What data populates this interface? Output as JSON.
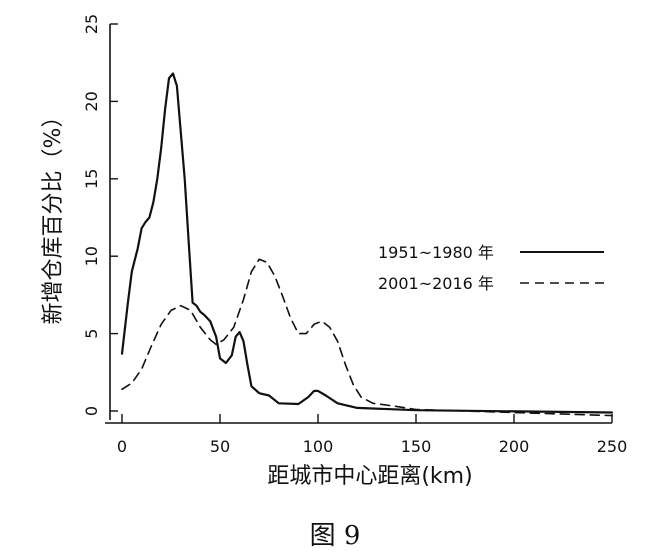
{
  "chart_data": {
    "type": "line",
    "title": "",
    "xlabel": "距城市中心距离(km)",
    "ylabel": "新增仓库百分比（%）",
    "xlim": [
      0,
      250
    ],
    "ylim": [
      0,
      25
    ],
    "x_ticks": [
      0,
      50,
      100,
      150,
      200,
      250
    ],
    "y_ticks": [
      0,
      5,
      10,
      15,
      20,
      25
    ],
    "grid": false,
    "legend_position": "right",
    "series": [
      {
        "name": "1951~1980 年",
        "style": "solid",
        "points": [
          [
            0,
            3.7
          ],
          [
            3,
            7
          ],
          [
            5,
            9
          ],
          [
            8,
            10.5
          ],
          [
            10,
            11.8
          ],
          [
            12,
            12.2
          ],
          [
            14,
            12.5
          ],
          [
            16,
            13.5
          ],
          [
            18,
            15
          ],
          [
            20,
            17
          ],
          [
            22,
            19.5
          ],
          [
            24,
            21.5
          ],
          [
            26,
            21.8
          ],
          [
            28,
            21
          ],
          [
            30,
            18
          ],
          [
            32,
            15
          ],
          [
            34,
            11
          ],
          [
            36,
            7
          ],
          [
            38,
            6.8
          ],
          [
            40,
            6.4
          ],
          [
            42,
            6.2
          ],
          [
            45,
            5.8
          ],
          [
            48,
            4.8
          ],
          [
            50,
            3.4
          ],
          [
            53,
            3.1
          ],
          [
            56,
            3.6
          ],
          [
            58,
            4.8
          ],
          [
            60,
            5.1
          ],
          [
            62,
            4.5
          ],
          [
            64,
            3.0
          ],
          [
            66,
            1.6
          ],
          [
            70,
            1.15
          ],
          [
            75,
            1.0
          ],
          [
            80,
            0.5
          ],
          [
            90,
            0.45
          ],
          [
            95,
            0.9
          ],
          [
            98,
            1.3
          ],
          [
            100,
            1.3
          ],
          [
            104,
            1.0
          ],
          [
            110,
            0.5
          ],
          [
            120,
            0.2
          ],
          [
            150,
            0.05
          ],
          [
            250,
            -0.1
          ]
        ]
      },
      {
        "name": "2001~2016 年",
        "style": "dashed",
        "points": [
          [
            0,
            1.4
          ],
          [
            5,
            1.8
          ],
          [
            10,
            2.7
          ],
          [
            15,
            4.2
          ],
          [
            20,
            5.6
          ],
          [
            25,
            6.5
          ],
          [
            30,
            6.8
          ],
          [
            35,
            6.5
          ],
          [
            40,
            5.4
          ],
          [
            45,
            4.6
          ],
          [
            48,
            4.3
          ],
          [
            52,
            4.6
          ],
          [
            57,
            5.4
          ],
          [
            62,
            7.2
          ],
          [
            66,
            9.0
          ],
          [
            70,
            9.8
          ],
          [
            74,
            9.6
          ],
          [
            78,
            8.7
          ],
          [
            82,
            7.4
          ],
          [
            86,
            6.0
          ],
          [
            90,
            5.0
          ],
          [
            94,
            5.0
          ],
          [
            98,
            5.6
          ],
          [
            102,
            5.8
          ],
          [
            106,
            5.4
          ],
          [
            110,
            4.5
          ],
          [
            114,
            3.0
          ],
          [
            118,
            1.7
          ],
          [
            122,
            0.9
          ],
          [
            128,
            0.5
          ],
          [
            140,
            0.3
          ],
          [
            150,
            0.1
          ],
          [
            200,
            -0.1
          ],
          [
            250,
            -0.3
          ]
        ]
      }
    ]
  },
  "caption": "图 9"
}
